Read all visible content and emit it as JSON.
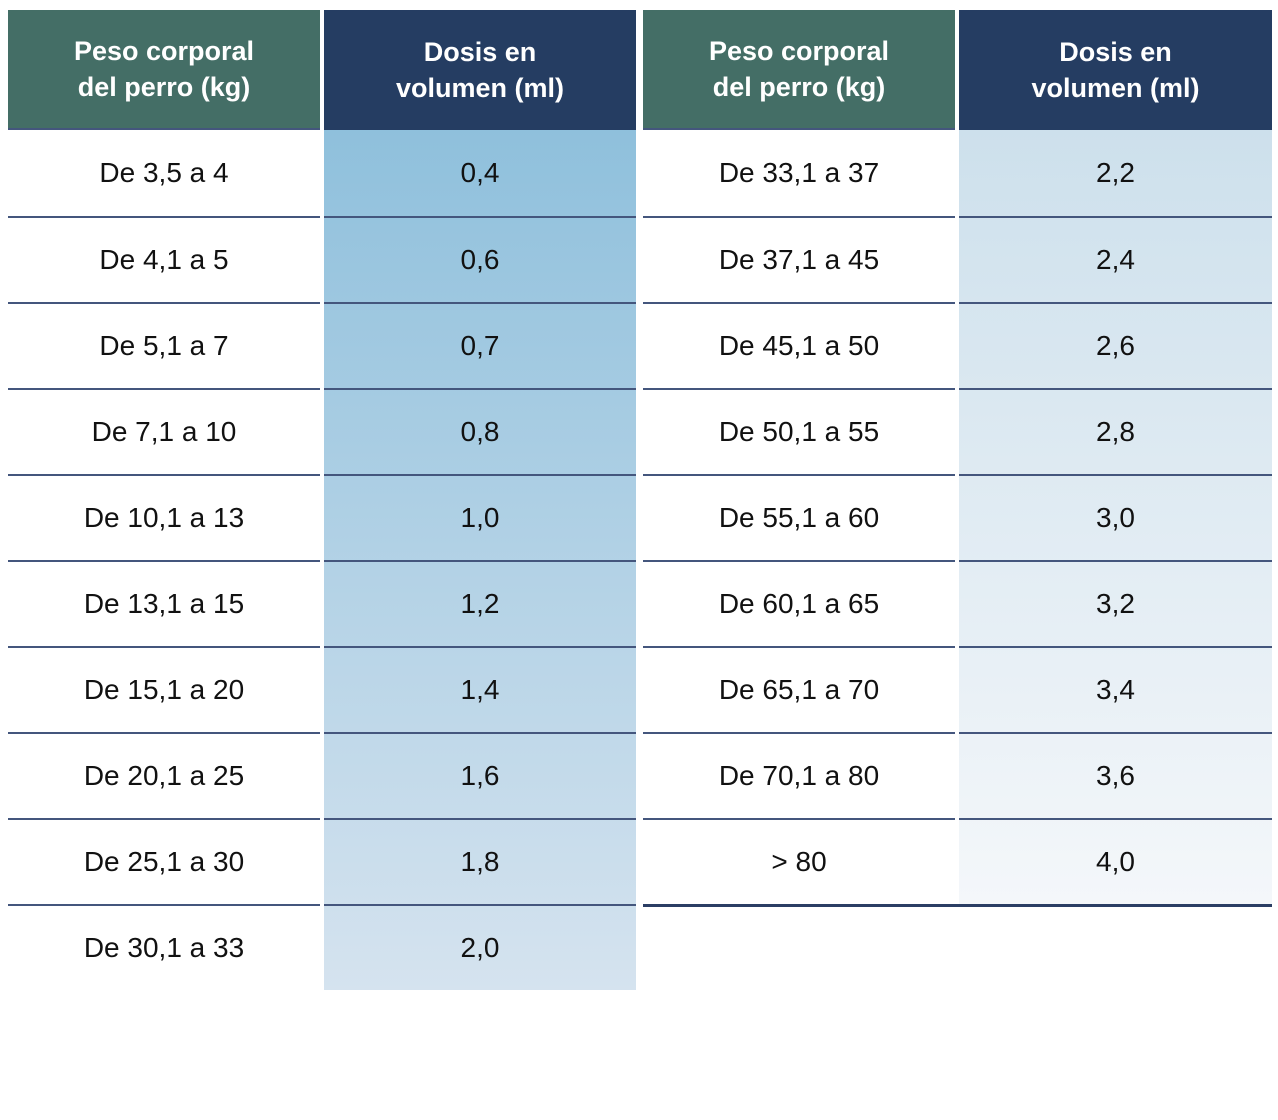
{
  "headers": {
    "weight_line1": "Peso corporal",
    "weight_line2": "del perro (kg)",
    "dose_line1": "Dosis en",
    "dose_line2": "volumen (ml)"
  },
  "tables": {
    "left": {
      "rows": [
        {
          "weight": "De 3,5 a 4",
          "dose": "0,4"
        },
        {
          "weight": "De 4,1 a 5",
          "dose": "0,6"
        },
        {
          "weight": "De 5,1 a 7",
          "dose": "0,7"
        },
        {
          "weight": "De 7,1 a 10",
          "dose": "0,8"
        },
        {
          "weight": "De 10,1 a 13",
          "dose": "1,0"
        },
        {
          "weight": "De 13,1 a 15",
          "dose": "1,2"
        },
        {
          "weight": "De 15,1 a 20",
          "dose": "1,4"
        },
        {
          "weight": "De 20,1 a 25",
          "dose": "1,6"
        },
        {
          "weight": "De 25,1 a 30",
          "dose": "1,8"
        },
        {
          "weight": "De 30,1 a 33",
          "dose": "2,0"
        }
      ]
    },
    "right": {
      "rows": [
        {
          "weight": "De 33,1 a 37",
          "dose": "2,2"
        },
        {
          "weight": "De 37,1 a 45",
          "dose": "2,4"
        },
        {
          "weight": "De 45,1 a 50",
          "dose": "2,6"
        },
        {
          "weight": "De 50,1 a 55",
          "dose": "2,8"
        },
        {
          "weight": "De 55,1 a 60",
          "dose": "3,0"
        },
        {
          "weight": "De 60,1 a 65",
          "dose": "3,2"
        },
        {
          "weight": "De 65,1 a 70",
          "dose": "3,4"
        },
        {
          "weight": "De 70,1 a 80",
          "dose": "3,6"
        },
        {
          "weight": "> 80",
          "dose": "4,0"
        }
      ]
    }
  },
  "colors": {
    "green_header": "#446e66",
    "navy_header": "#253d62",
    "separator": "#44567d",
    "bottom_border": "#2b3e64",
    "dose_left_top": "#8fc0dc",
    "dose_left_bottom": "#d5e3ef",
    "dose_right_top": "#cde0ec",
    "dose_right_bottom": "#f4f7fa",
    "body_text": "#111111",
    "header_text": "#ffffff"
  }
}
